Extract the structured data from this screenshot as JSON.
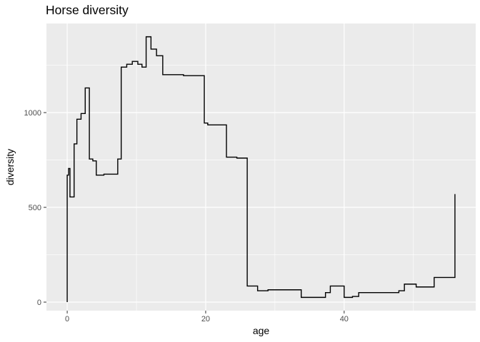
{
  "chart_data": {
    "type": "line",
    "step": true,
    "title": "Horse diversity",
    "xlabel": "age",
    "ylabel": "diversity",
    "xlim": [
      -3,
      59
    ],
    "ylim": [
      -45,
      1470
    ],
    "x_ticks": [
      0,
      20,
      40
    ],
    "y_ticks": [
      0,
      500,
      1000
    ],
    "x_tick_labels": [
      "0",
      "20",
      "40"
    ],
    "y_tick_labels": [
      "0",
      "500",
      "1000"
    ],
    "grid": true,
    "panel_background": "#ebebeb",
    "grid_color": "#ffffff",
    "line_color": "#000000",
    "series": [
      {
        "x": [
          0,
          0,
          0.2,
          0.4,
          1.0,
          1.4,
          2.0,
          2.6,
          3.2,
          3.7,
          4.2,
          5.3,
          7.3,
          7.8,
          8.6,
          9.4,
          10.2,
          10.8,
          11.4,
          12.1,
          12.9,
          13.8,
          15.3,
          16.8,
          19.8,
          20.3,
          23.0,
          24.5,
          26.0,
          27.5,
          29.0,
          33.3,
          33.8,
          37.3,
          38.0,
          40.0,
          41.2,
          42.1,
          46.3,
          47.9,
          48.7,
          50.4,
          53.0,
          56.0,
          56.0
        ],
        "y": [
          0,
          670,
          705,
          555,
          835,
          965,
          995,
          1130,
          755,
          745,
          670,
          675,
          755,
          1240,
          1255,
          1270,
          1255,
          1240,
          1400,
          1335,
          1300,
          1200,
          1200,
          1195,
          945,
          935,
          765,
          760,
          85,
          60,
          65,
          65,
          25,
          50,
          85,
          25,
          30,
          50,
          50,
          60,
          95,
          80,
          130,
          130,
          570
        ]
      }
    ]
  }
}
